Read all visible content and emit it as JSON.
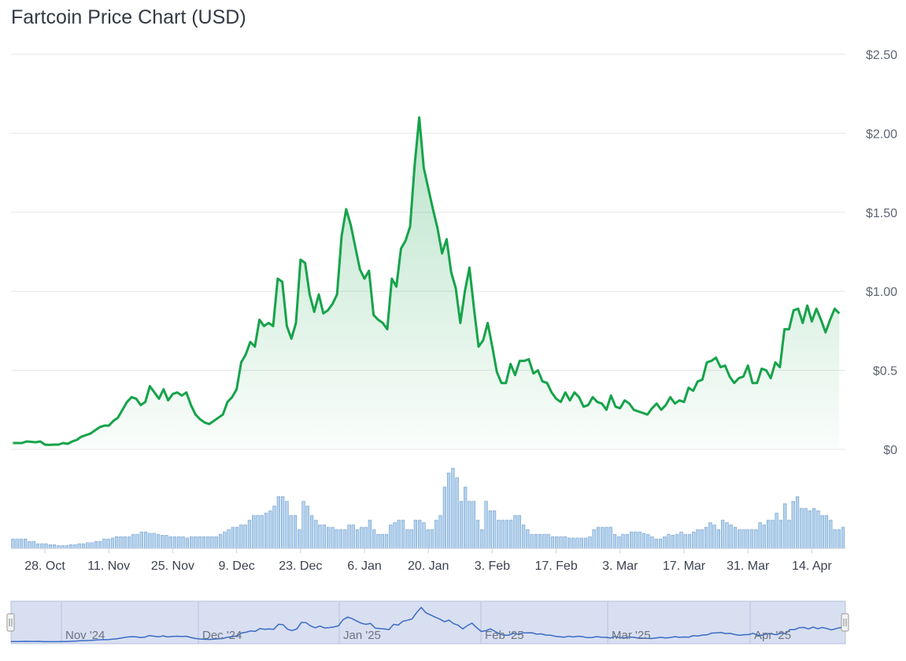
{
  "title": "Fartcoin Price Chart (USD)",
  "colors": {
    "line": "#16a34a",
    "area_top": "#16a34a",
    "volume_bar": "#b5d3ef",
    "volume_stroke": "#5a8fc4",
    "navigator_fill": "#d7dff0",
    "navigator_line": "#3b6bc4",
    "grid": "#e6e6e6"
  },
  "chart_data": {
    "type": "line",
    "title": "Fartcoin Price Chart (USD)",
    "ylim": [
      0,
      2.5
    ],
    "yticks": [
      "$0",
      "$0.5",
      "$1.00",
      "$1.50",
      "$2.00",
      "$2.50"
    ],
    "ytick_values": [
      0,
      0.5,
      1.0,
      1.5,
      2.0,
      2.5
    ],
    "xticks": [
      "28. Oct",
      "11. Nov",
      "25. Nov",
      "9. Dec",
      "23. Dec",
      "6. Jan",
      "20. Jan",
      "3. Feb",
      "17. Feb",
      "3. Mar",
      "17. Mar",
      "31. Mar",
      "14. Apr"
    ],
    "xtick_days": [
      0,
      14,
      28,
      42,
      56,
      70,
      84,
      98,
      112,
      126,
      140,
      154,
      168
    ],
    "x_start_label": "28. Oct",
    "grid": true,
    "series": [
      {
        "points": [
          [
            -7,
            0.04
          ],
          [
            -5,
            0.04
          ],
          [
            -4,
            0.05
          ],
          [
            -2,
            0.045
          ],
          [
            -1,
            0.05
          ],
          [
            0,
            0.03
          ],
          [
            1,
            0.028
          ],
          [
            2,
            0.03
          ],
          [
            3,
            0.03
          ],
          [
            4,
            0.04
          ],
          [
            5,
            0.035
          ],
          [
            6,
            0.05
          ],
          [
            7,
            0.06
          ],
          [
            8,
            0.08
          ],
          [
            9,
            0.09
          ],
          [
            10,
            0.1
          ],
          [
            11,
            0.12
          ],
          [
            12,
            0.14
          ],
          [
            13,
            0.15
          ],
          [
            14,
            0.15
          ],
          [
            15,
            0.18
          ],
          [
            16,
            0.2
          ],
          [
            17,
            0.25
          ],
          [
            18,
            0.3
          ],
          [
            19,
            0.33
          ],
          [
            20,
            0.32
          ],
          [
            21,
            0.28
          ],
          [
            22,
            0.3
          ],
          [
            23,
            0.4
          ],
          [
            24,
            0.36
          ],
          [
            25,
            0.32
          ],
          [
            26,
            0.38
          ],
          [
            27,
            0.31
          ],
          [
            28,
            0.35
          ],
          [
            29,
            0.36
          ],
          [
            30,
            0.34
          ],
          [
            31,
            0.36
          ],
          [
            32,
            0.28
          ],
          [
            33,
            0.22
          ],
          [
            34,
            0.19
          ],
          [
            35,
            0.17
          ],
          [
            36,
            0.16
          ],
          [
            37,
            0.18
          ],
          [
            38,
            0.2
          ],
          [
            39,
            0.22
          ],
          [
            40,
            0.3
          ],
          [
            41,
            0.33
          ],
          [
            42,
            0.38
          ],
          [
            43,
            0.55
          ],
          [
            44,
            0.6
          ],
          [
            45,
            0.68
          ],
          [
            46,
            0.65
          ],
          [
            47,
            0.82
          ],
          [
            48,
            0.78
          ],
          [
            49,
            0.8
          ],
          [
            50,
            0.78
          ],
          [
            51,
            1.08
          ],
          [
            52,
            1.06
          ],
          [
            53,
            0.78
          ],
          [
            54,
            0.7
          ],
          [
            55,
            0.8
          ],
          [
            56,
            1.2
          ],
          [
            57,
            1.18
          ],
          [
            58,
            0.98
          ],
          [
            59,
            0.87
          ],
          [
            60,
            0.98
          ],
          [
            61,
            0.86
          ],
          [
            62,
            0.88
          ],
          [
            63,
            0.92
          ],
          [
            64,
            0.98
          ],
          [
            65,
            1.35
          ],
          [
            66,
            1.52
          ],
          [
            67,
            1.42
          ],
          [
            68,
            1.28
          ],
          [
            69,
            1.14
          ],
          [
            70,
            1.08
          ],
          [
            71,
            1.13
          ],
          [
            72,
            0.85
          ],
          [
            73,
            0.82
          ],
          [
            74,
            0.8
          ],
          [
            75,
            0.76
          ],
          [
            76,
            1.08
          ],
          [
            77,
            1.03
          ],
          [
            78,
            1.27
          ],
          [
            79,
            1.32
          ],
          [
            80,
            1.41
          ],
          [
            81,
            1.8
          ],
          [
            82,
            2.1
          ],
          [
            83,
            1.78
          ],
          [
            84,
            1.65
          ],
          [
            85,
            1.52
          ],
          [
            86,
            1.4
          ],
          [
            87,
            1.24
          ],
          [
            88,
            1.33
          ],
          [
            89,
            1.12
          ],
          [
            90,
            1.02
          ],
          [
            91,
            0.8
          ],
          [
            92,
            1.0
          ],
          [
            93,
            1.15
          ],
          [
            94,
            0.89
          ],
          [
            95,
            0.65
          ],
          [
            96,
            0.69
          ],
          [
            97,
            0.8
          ],
          [
            98,
            0.65
          ],
          [
            99,
            0.49
          ],
          [
            100,
            0.42
          ],
          [
            101,
            0.42
          ],
          [
            102,
            0.54
          ],
          [
            103,
            0.47
          ],
          [
            104,
            0.56
          ],
          [
            105,
            0.56
          ],
          [
            106,
            0.57
          ],
          [
            107,
            0.48
          ],
          [
            108,
            0.5
          ],
          [
            109,
            0.43
          ],
          [
            110,
            0.42
          ],
          [
            111,
            0.36
          ],
          [
            112,
            0.32
          ],
          [
            113,
            0.3
          ],
          [
            114,
            0.36
          ],
          [
            115,
            0.31
          ],
          [
            116,
            0.36
          ],
          [
            117,
            0.33
          ],
          [
            118,
            0.27
          ],
          [
            119,
            0.28
          ],
          [
            120,
            0.33
          ],
          [
            121,
            0.3
          ],
          [
            122,
            0.29
          ],
          [
            123,
            0.25
          ],
          [
            124,
            0.34
          ],
          [
            125,
            0.27
          ],
          [
            126,
            0.26
          ],
          [
            127,
            0.31
          ],
          [
            128,
            0.29
          ],
          [
            129,
            0.25
          ],
          [
            130,
            0.24
          ],
          [
            131,
            0.23
          ],
          [
            132,
            0.22
          ],
          [
            133,
            0.26
          ],
          [
            134,
            0.29
          ],
          [
            135,
            0.25
          ],
          [
            136,
            0.28
          ],
          [
            137,
            0.33
          ],
          [
            138,
            0.29
          ],
          [
            139,
            0.31
          ],
          [
            140,
            0.3
          ],
          [
            141,
            0.39
          ],
          [
            142,
            0.37
          ],
          [
            143,
            0.43
          ],
          [
            144,
            0.44
          ],
          [
            145,
            0.55
          ],
          [
            146,
            0.56
          ],
          [
            147,
            0.58
          ],
          [
            148,
            0.52
          ],
          [
            149,
            0.53
          ],
          [
            150,
            0.46
          ],
          [
            151,
            0.42
          ],
          [
            152,
            0.45
          ],
          [
            153,
            0.46
          ],
          [
            154,
            0.53
          ],
          [
            155,
            0.42
          ],
          [
            156,
            0.42
          ],
          [
            157,
            0.51
          ],
          [
            158,
            0.5
          ],
          [
            159,
            0.45
          ],
          [
            160,
            0.55
          ],
          [
            161,
            0.52
          ],
          [
            162,
            0.76
          ],
          [
            163,
            0.76
          ],
          [
            164,
            0.88
          ],
          [
            165,
            0.89
          ],
          [
            166,
            0.8
          ],
          [
            167,
            0.91
          ],
          [
            168,
            0.81
          ],
          [
            169,
            0.89
          ],
          [
            170,
            0.82
          ],
          [
            171,
            0.74
          ],
          [
            172,
            0.82
          ],
          [
            173,
            0.89
          ],
          [
            174,
            0.86
          ]
        ]
      }
    ],
    "volume": [
      2,
      2,
      2,
      2,
      1.5,
      1.5,
      1,
      1,
      1,
      0.8,
      0.8,
      0.6,
      0.6,
      0.6,
      0.8,
      0.8,
      1,
      1,
      1.2,
      1.2,
      1.5,
      1.5,
      2,
      2,
      2.2,
      2.5,
      2.5,
      2.5,
      2.5,
      3,
      3,
      3.5,
      3.5,
      3.2,
      3.2,
      3,
      2.8,
      2.8,
      2.5,
      2.5,
      2.5,
      2.5,
      2.2,
      2.5,
      2.5,
      2.5,
      2.5,
      2.5,
      2.5,
      2.5,
      3,
      3.5,
      4,
      4.5,
      4.5,
      5,
      5,
      6,
      7,
      7,
      7,
      7.5,
      8,
      9,
      11,
      11,
      10,
      7,
      7,
      4,
      10,
      9,
      7,
      6,
      5,
      5,
      4.5,
      4.5,
      4,
      4,
      4,
      5,
      5,
      4,
      4.5,
      4.5,
      6,
      4,
      3,
      3,
      3,
      5,
      5.5,
      6,
      6,
      4,
      4,
      6,
      6,
      5.5,
      4,
      4,
      6,
      7,
      13,
      16,
      17,
      15,
      10,
      13,
      10,
      10,
      6,
      4,
      10,
      8,
      8,
      6,
      6,
      6,
      6,
      7,
      7,
      5,
      4,
      3,
      3,
      3,
      3,
      3,
      2.5,
      2.5,
      2.5,
      2.5,
      2.2,
      2.2,
      2.2,
      2.2,
      2.2,
      2.5,
      4,
      4.5,
      4.5,
      4.5,
      4.5,
      3,
      2.5,
      3,
      3,
      3.5,
      3.5,
      3.5,
      3.2,
      3,
      2.5,
      2,
      2,
      2.5,
      3,
      2.8,
      3,
      3.5,
      3,
      3,
      3.5,
      4,
      4,
      4.5,
      5.5,
      5,
      4,
      6,
      5.5,
      5,
      4.5,
      4,
      4,
      4,
      4,
      4,
      5.5,
      5,
      6,
      6,
      7.5,
      6,
      9.5,
      6,
      10,
      11,
      8.5,
      8.5,
      8,
      8.5,
      8,
      7,
      7,
      6,
      4,
      4,
      4.5
    ]
  },
  "navigator": {
    "labels": [
      "Nov '24",
      "Dec '24",
      "Jan '25",
      "Feb '25",
      "Mar '25",
      "Apr '25"
    ]
  }
}
